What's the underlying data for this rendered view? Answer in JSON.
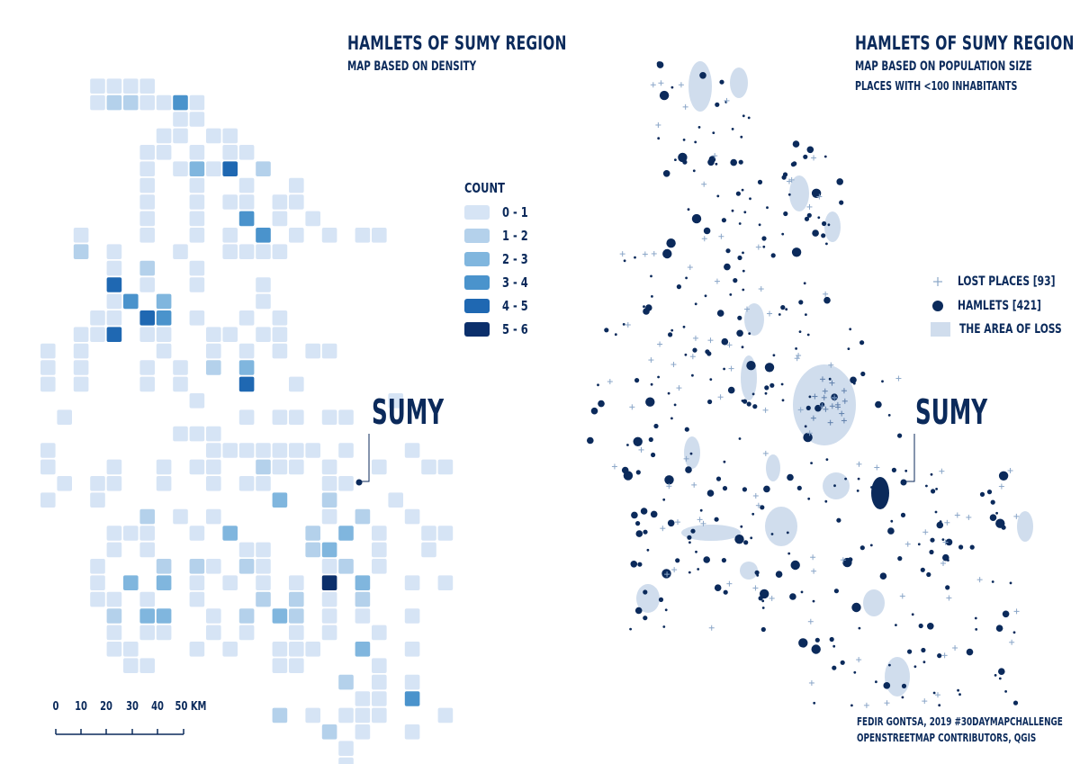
{
  "left": {
    "title": "HAMLETS OF SUMY REGION",
    "subtitle": "MAP BASED ON DENSITY",
    "city_label": "SUMY",
    "legend": {
      "title": "COUNT",
      "items": [
        {
          "label": "0 - 1",
          "color": "#d6e4f5"
        },
        {
          "label": "1 - 2",
          "color": "#b4d1eb"
        },
        {
          "label": "2 - 3",
          "color": "#80b6de"
        },
        {
          "label": "3 - 4",
          "color": "#4a93cc"
        },
        {
          "label": "4 - 5",
          "color": "#1f68b2"
        },
        {
          "label": "5 - 6",
          "color": "#0b2f6b"
        }
      ]
    },
    "scale_bar": {
      "ticks": [
        "0",
        "10",
        "20",
        "30",
        "40"
      ],
      "end_label": "50 KM"
    }
  },
  "right": {
    "title": "HAMLETS OF SUMY REGION",
    "subtitle": "MAP BASED ON POPULATION SIZE",
    "subtitle2": "PLACES WITH <100 INHABITANTS",
    "city_label": "SUMY",
    "legend": [
      {
        "label": "LOST PLACES [93]",
        "symbol": "plus-icon",
        "color": "#8aa6c8"
      },
      {
        "label": "HAMLETS [421]",
        "symbol": "dot-icon",
        "color": "#0b2a5b"
      },
      {
        "label": "THE AREA OF LOSS",
        "symbol": "area-swatch",
        "color": "#d0dded"
      }
    ],
    "credits": [
      "FEDIR GONTSA, 2019 #30DAYMAPCHALLENGE",
      "OPENSTREETMAP CONTRIBUTORS, QGIS"
    ]
  },
  "colors": {
    "ink": "#0b2a5b",
    "area": "#d0dded",
    "lost": "#8aa6c8"
  }
}
